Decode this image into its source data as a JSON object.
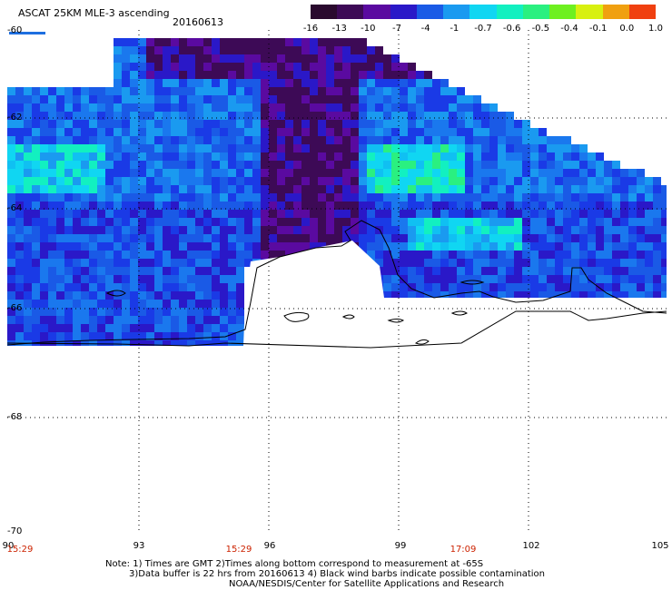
{
  "header": {
    "title": "ASCAT 25KM MLE-3 ascending",
    "date": "20160613"
  },
  "colorbar": {
    "labels": [
      "-16",
      "-13",
      "-10",
      "-7",
      "-4",
      "-1",
      "-0.7",
      "-0.6",
      "-0.5",
      "-0.4",
      "-0.1",
      "0.0",
      "1.0"
    ],
    "colors": [
      "#2a0a2e",
      "#3d0a56",
      "#5a0aa0",
      "#2a18c8",
      "#1a5ae6",
      "#1a9af0",
      "#10d6f2",
      "#12f0c0",
      "#2af080",
      "#6ef020",
      "#d8f010",
      "#f0a010",
      "#f04010"
    ]
  },
  "axes": {
    "lat_labels": [
      "-60",
      "-62",
      "-64",
      "-66",
      "-68",
      "-70"
    ],
    "lon_labels": [
      "90",
      "93",
      "96",
      "99",
      "102",
      "105"
    ],
    "time_labels": [
      "15:29",
      "15:29",
      "17:09"
    ]
  },
  "notes": {
    "line1": "Note: 1) Times are GMT 2)Times along bottom correspond to measurement at -65S",
    "line2": "3)Data buffer is 22 hrs from 20160613 4) Black wind barbs indicate possible contamination",
    "line3": "NOAA/NESDIS/Center for Satellite Applications and Research"
  }
}
